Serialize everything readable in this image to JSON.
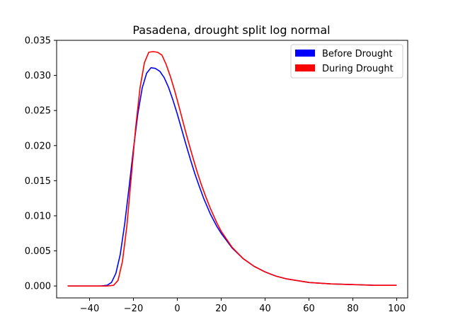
{
  "chart_data": {
    "type": "line",
    "title": "Pasadena, drought split log normal",
    "xlabel": "",
    "ylabel": "",
    "xlim": [
      -55,
      105
    ],
    "ylim": [
      -0.0017,
      0.035
    ],
    "xticks": [
      -40,
      -20,
      0,
      20,
      40,
      60,
      80,
      100
    ],
    "xtick_labels": [
      "−40",
      "−20",
      "0",
      "20",
      "40",
      "60",
      "80",
      "100"
    ],
    "yticks": [
      0.0,
      0.005,
      0.01,
      0.015,
      0.02,
      0.025,
      0.03,
      0.035
    ],
    "ytick_labels": [
      "0.000",
      "0.005",
      "0.010",
      "0.015",
      "0.020",
      "0.025",
      "0.030",
      "0.035"
    ],
    "grid": false,
    "legend_position": "top-right",
    "series": [
      {
        "name": "Before Drought",
        "color": "#0000ff",
        "x": [
          -50,
          -40,
          -35,
          -32,
          -30,
          -28,
          -26,
          -24,
          -22,
          -20,
          -18,
          -16,
          -14,
          -12,
          -10,
          -8,
          -6,
          -4,
          -2,
          0,
          2,
          4,
          6,
          8,
          10,
          12,
          15,
          18,
          20,
          25,
          30,
          35,
          40,
          45,
          50,
          60,
          70,
          80,
          90,
          100
        ],
        "y": [
          0.0,
          0.0,
          0.0,
          0.0001,
          0.0005,
          0.0018,
          0.0045,
          0.0088,
          0.014,
          0.0195,
          0.0245,
          0.0282,
          0.0303,
          0.0311,
          0.031,
          0.0306,
          0.0297,
          0.0283,
          0.0265,
          0.0245,
          0.0223,
          0.0201,
          0.018,
          0.016,
          0.0142,
          0.0125,
          0.0103,
          0.0085,
          0.0075,
          0.0054,
          0.0039,
          0.0028,
          0.002,
          0.0014,
          0.001,
          0.0005,
          0.0003,
          0.0002,
          0.0001,
          0.0001
        ]
      },
      {
        "name": "During Drought",
        "color": "#ff0000",
        "x": [
          -50,
          -40,
          -32,
          -29,
          -27,
          -25,
          -23,
          -21,
          -19,
          -17,
          -15,
          -13,
          -11,
          -9,
          -7,
          -5,
          -3,
          -1,
          1,
          3,
          5,
          7,
          9,
          11,
          13,
          15,
          18,
          20,
          25,
          30,
          35,
          40,
          45,
          50,
          60,
          70,
          80,
          90,
          100
        ],
        "y": [
          0.0,
          0.0,
          0.0,
          0.0001,
          0.0008,
          0.0035,
          0.0085,
          0.0155,
          0.0225,
          0.0282,
          0.0318,
          0.0333,
          0.0334,
          0.0333,
          0.0329,
          0.0315,
          0.0297,
          0.0276,
          0.0253,
          0.0229,
          0.0206,
          0.0184,
          0.0163,
          0.0144,
          0.0127,
          0.0111,
          0.009,
          0.0078,
          0.0055,
          0.0039,
          0.0028,
          0.002,
          0.0014,
          0.001,
          0.0005,
          0.0003,
          0.0002,
          0.0001,
          0.0001
        ]
      }
    ]
  }
}
